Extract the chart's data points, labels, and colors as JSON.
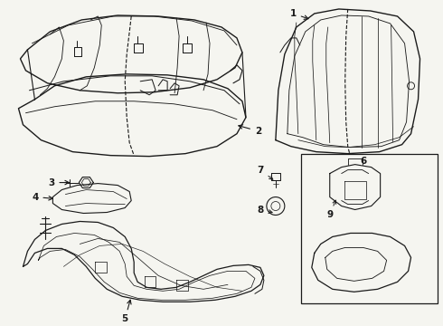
{
  "bg_color": "#f5f5f0",
  "line_color": "#1a1a1a",
  "lw": 0.9,
  "fig_width": 4.9,
  "fig_height": 3.6,
  "dpi": 100
}
